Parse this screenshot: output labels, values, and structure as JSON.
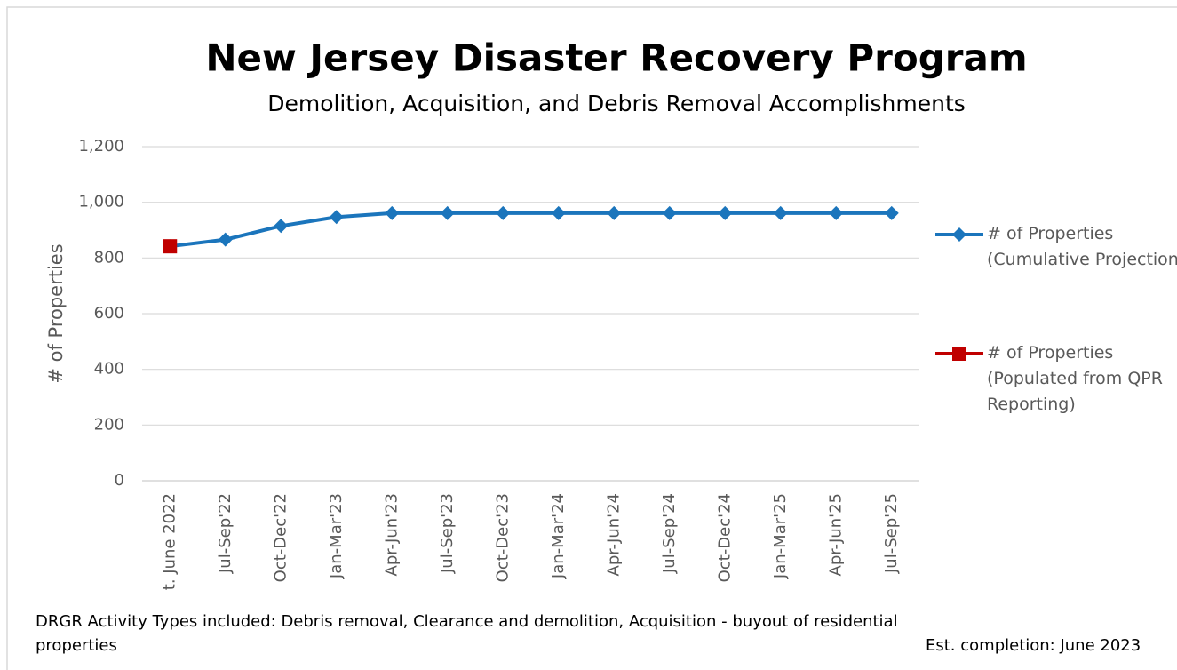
{
  "chart_data": {
    "type": "line",
    "title": "New Jersey Disaster Recovery Program",
    "subtitle": "Demolition, Acquisition, and Debris Removal Accomplishments",
    "y_label": "# of Properties",
    "categories": [
      "t. June 2022",
      "Jul-Sep'22",
      "Oct-Dec'22",
      "Jan-Mar'23",
      "Apr-Jun'23",
      "Jul-Sep'23",
      "Oct-Dec'23",
      "Jan-Mar'24",
      "Apr-Jun'24",
      "Jul-Sep'24",
      "Oct-Dec'24",
      "Jan-Mar'25",
      "Apr-Jun'25",
      "Jul-Sep'25"
    ],
    "series": [
      {
        "name": "# of Properties (Cumulative Projection)",
        "color": "#1b75bc",
        "marker": "diamond",
        "values": [
          842,
          866,
          915,
          947,
          961,
          961,
          961,
          961,
          961,
          961,
          961,
          961,
          961,
          961
        ]
      },
      {
        "name": "# of Properties (Populated from QPR Reporting)",
        "color": "#c00000",
        "marker": "square",
        "values": [
          842,
          null,
          null,
          null,
          null,
          null,
          null,
          null,
          null,
          null,
          null,
          null,
          null,
          null
        ]
      }
    ],
    "ylim": [
      0,
      1200
    ],
    "yticks": [
      0,
      200,
      400,
      600,
      800,
      {
        "value": 1000,
        "label": "1,000"
      },
      {
        "value": 1200,
        "label": "1,200"
      }
    ],
    "grid": true,
    "legend": "right",
    "footnote": "DRGR Activity Types included: Debris removal, Clearance and demolition, Acquisition - buyout of residential properties",
    "note": "Est. completion: June 2023"
  }
}
